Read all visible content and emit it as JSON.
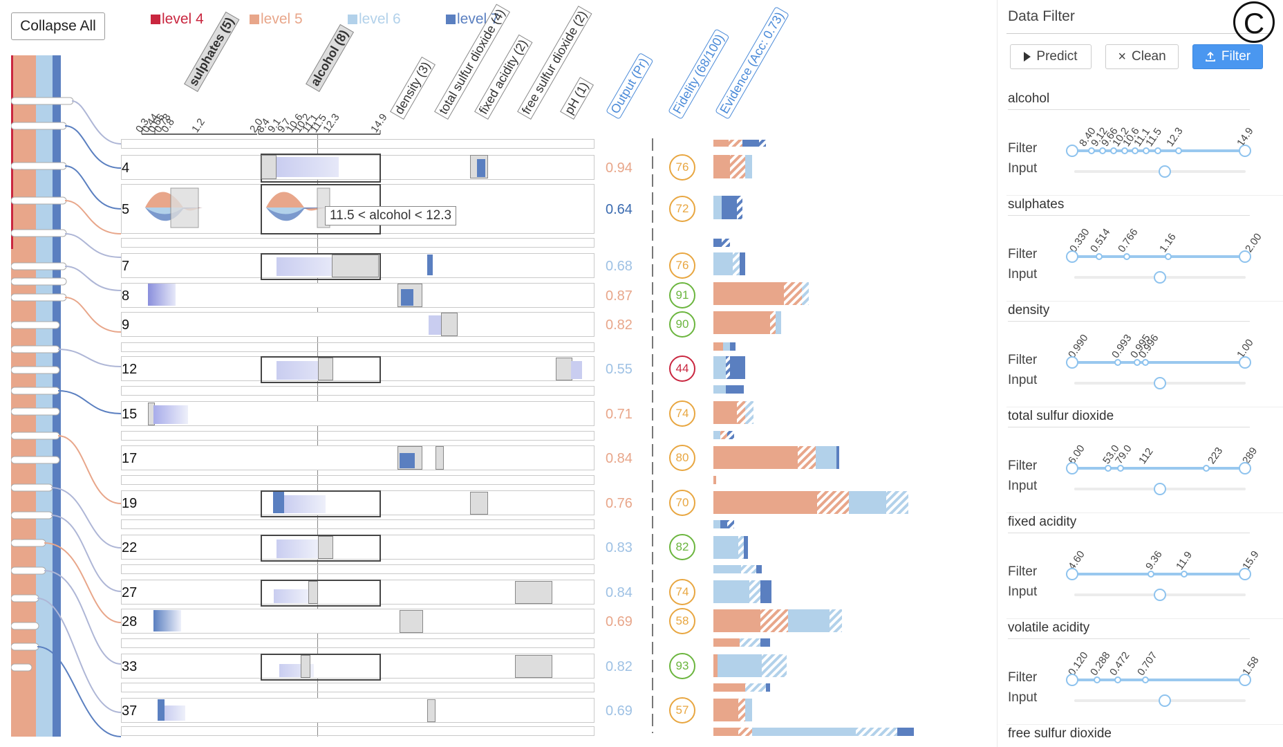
{
  "toolbar": {
    "collapse_label": "Collapse All"
  },
  "legend": [
    {
      "label": "level 4",
      "color": "#c9263f"
    },
    {
      "label": "level 5",
      "color": "#e8a68a"
    },
    {
      "label": "level 6",
      "color": "#b2d1ea"
    },
    {
      "label": "level 7",
      "color": "#5a7fc0"
    }
  ],
  "columns": {
    "sulphates": "sulphates (5)",
    "alcohol": "alcohol (8)",
    "density": "density (3)",
    "total_sulfur": "total sulfur dioxide (4)",
    "fixed_acidity": "fixed acidity (2)",
    "free_sulfur": "free sulfur dioxide (2)",
    "ph": "pH (1)",
    "output": "Output (Pr)",
    "fidelity": "Fidelity (68/100)",
    "evidence": "Evidence (Acc: 0.73)"
  },
  "axis_ticks": {
    "sulphates": [
      "0.3",
      "0.44",
      "0.66",
      "0.78",
      "0.8",
      "1.2"
    ],
    "alcohol": [
      "2.0",
      "8.4",
      "9.1",
      "9.7",
      "10.6",
      "10.2",
      "11.1",
      "11.5",
      "12.3",
      "14.9"
    ]
  },
  "tooltip": "11.5 < alcohol < 12.3",
  "rows": [
    {
      "id": "4",
      "output": "0.94",
      "out_color": "#e8a68a",
      "fidelity": "76",
      "fid_color": "#e8a640"
    },
    {
      "id": "5",
      "output": "0.64",
      "out_color": "#3b6bb0",
      "fidelity": "72",
      "fid_color": "#e8a640"
    },
    {
      "id": "7",
      "output": "0.68",
      "out_color": "#9ec1e4",
      "fidelity": "76",
      "fid_color": "#e8a640"
    },
    {
      "id": "8",
      "output": "0.87",
      "out_color": "#e8a68a",
      "fidelity": "91",
      "fid_color": "#6bb53e"
    },
    {
      "id": "9",
      "output": "0.82",
      "out_color": "#e8a68a",
      "fidelity": "90",
      "fid_color": "#6bb53e"
    },
    {
      "id": "12",
      "output": "0.55",
      "out_color": "#9ec1e4",
      "fidelity": "44",
      "fid_color": "#c9263f"
    },
    {
      "id": "15",
      "output": "0.71",
      "out_color": "#e8a68a",
      "fidelity": "74",
      "fid_color": "#e8a640"
    },
    {
      "id": "17",
      "output": "0.84",
      "out_color": "#e8a68a",
      "fidelity": "80",
      "fid_color": "#e8a640"
    },
    {
      "id": "19",
      "output": "0.76",
      "out_color": "#e8a68a",
      "fidelity": "70",
      "fid_color": "#e8a640"
    },
    {
      "id": "22",
      "output": "0.83",
      "out_color": "#9ec1e4",
      "fidelity": "82",
      "fid_color": "#6bb53e"
    },
    {
      "id": "27",
      "output": "0.84",
      "out_color": "#9ec1e4",
      "fidelity": "74",
      "fid_color": "#e8a640"
    },
    {
      "id": "28",
      "output": "0.69",
      "out_color": "#e8a68a",
      "fidelity": "58",
      "fid_color": "#e8a640"
    },
    {
      "id": "33",
      "output": "0.82",
      "out_color": "#9ec1e4",
      "fidelity": "93",
      "fid_color": "#6bb53e"
    },
    {
      "id": "37",
      "output": "0.69",
      "out_color": "#9ec1e4",
      "fidelity": "57",
      "fid_color": "#e8a640"
    }
  ],
  "filter_panel": {
    "title": "Data Filter",
    "badge": "C",
    "predict": "Predict",
    "clean": "Clean",
    "filter": "Filter",
    "filter_label": "Filter",
    "input_label": "Input",
    "sections": [
      {
        "name": "alcohol",
        "ticks": [
          "8.40",
          "9.12",
          "9.66",
          "10.2",
          "10.6",
          "11.1",
          "11.5",
          "12.3",
          "14.9"
        ],
        "input": 0.53
      },
      {
        "name": "sulphates",
        "ticks": [
          "0.330",
          "0.514",
          "0.766",
          "1.16",
          "2.00"
        ],
        "input": 0.5
      },
      {
        "name": "density",
        "ticks": [
          "0.990",
          "0.993",
          "0.995",
          "0.996",
          "1.00"
        ],
        "input": 0.5
      },
      {
        "name": "total sulfur dioxide",
        "ticks": [
          "6.00",
          "53.0",
          "79.0",
          "112",
          "223",
          "289"
        ],
        "input": 0.5
      },
      {
        "name": "fixed acidity",
        "ticks": [
          "4.60",
          "9.36",
          "11.9",
          "15.9"
        ],
        "input": 0.5
      },
      {
        "name": "volatile acidity",
        "ticks": [
          "0.120",
          "0.288",
          "0.472",
          "0.707",
          "1.58"
        ],
        "input": 0.53
      },
      {
        "name": "free sulfur dioxide",
        "ticks": [],
        "input": 0.5
      }
    ]
  }
}
